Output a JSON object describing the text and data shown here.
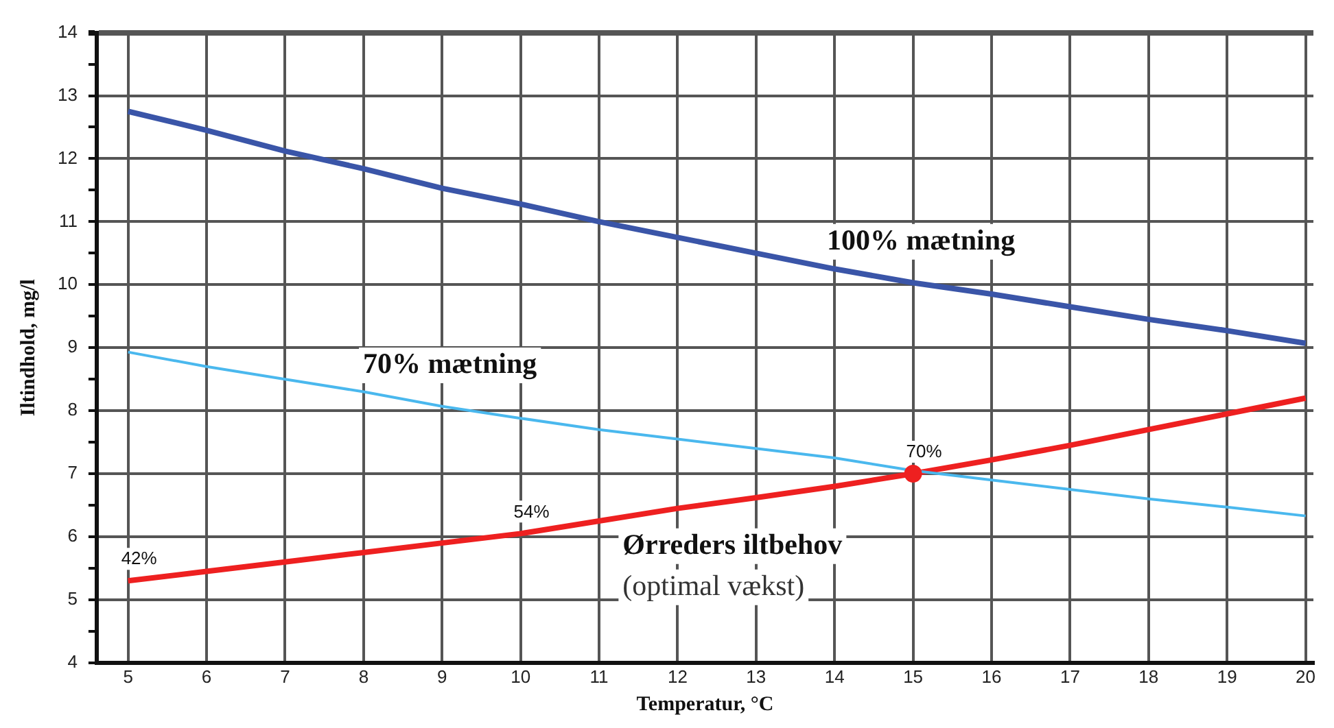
{
  "chart_data": {
    "type": "line",
    "xlabel": "Temperatur, °C",
    "ylabel": "Iltindhold, mg/l",
    "x": [
      5,
      6,
      7,
      8,
      9,
      10,
      11,
      12,
      13,
      14,
      15,
      16,
      17,
      18,
      19,
      20
    ],
    "series": [
      {
        "name": "100% mætning",
        "color": "#3a55a8",
        "values": [
          12.75,
          12.45,
          12.12,
          11.84,
          11.53,
          11.28,
          11.0,
          10.75,
          10.5,
          10.25,
          10.03,
          9.85,
          9.65,
          9.45,
          9.27,
          9.07
        ]
      },
      {
        "name": "70% mætning",
        "color": "#4ab8ee",
        "values": [
          8.93,
          8.7,
          8.5,
          8.3,
          8.07,
          7.88,
          7.7,
          7.55,
          7.4,
          7.25,
          7.05,
          6.9,
          6.75,
          6.6,
          6.47,
          6.33
        ]
      },
      {
        "name": "Ørreders iltbehov (optimal vækst)",
        "color": "#ee2020",
        "values": [
          5.3,
          5.45,
          5.6,
          5.75,
          5.9,
          6.05,
          6.25,
          6.45,
          6.62,
          6.8,
          7.0,
          7.22,
          7.45,
          7.7,
          7.95,
          8.2
        ]
      },
      {
        "type": "scatter",
        "color": "#ee2020",
        "marker": "circle",
        "x": [
          15
        ],
        "values": [
          7.0
        ]
      }
    ],
    "annotations": [
      {
        "text": "42%",
        "x": 5,
        "y": 5.3
      },
      {
        "text": "54%",
        "x": 10,
        "y": 6.05
      },
      {
        "text": "70%",
        "x": 15,
        "y": 7.0
      }
    ],
    "xlim": [
      4.6,
      20.1
    ],
    "xticks": [
      5,
      6,
      7,
      8,
      9,
      10,
      11,
      12,
      13,
      14,
      15,
      16,
      17,
      18,
      19,
      20
    ],
    "ylim": [
      4,
      14
    ],
    "yticks": [
      4,
      {
        "value": 4.5,
        "label": null
      },
      5,
      {
        "value": 5.5,
        "label": null
      },
      6,
      {
        "value": 6.5,
        "label": null
      },
      7,
      {
        "value": 7.5,
        "label": null
      },
      8,
      {
        "value": 8.5,
        "label": null
      },
      9,
      {
        "value": 9.5,
        "label": null
      },
      10,
      {
        "value": 10.5,
        "label": null
      },
      11,
      {
        "value": 11.5,
        "label": null
      },
      12,
      {
        "value": 12.5,
        "label": null
      },
      13,
      {
        "value": 13.5,
        "label": null
      },
      14
    ],
    "grid": true,
    "legend": false,
    "marker": "none",
    "line_style": "solid"
  }
}
